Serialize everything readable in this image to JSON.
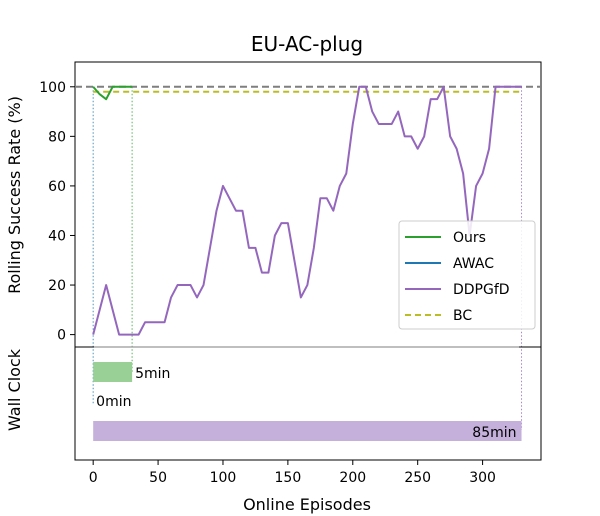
{
  "chart_data": {
    "type": "line",
    "title": "EU-AC-plug",
    "xlabel": "Online Episodes",
    "ylabel": "Rolling Success Rate (%)",
    "ylabel_bottom": "Wall Clock",
    "xlim": [
      -14,
      345
    ],
    "ylim": [
      -5,
      110
    ],
    "xticks": [
      0,
      50,
      100,
      150,
      200,
      250,
      300
    ],
    "yticks": [
      0,
      20,
      40,
      60,
      80,
      100
    ],
    "grid": false,
    "legend_position": "center-right",
    "reference_line": {
      "y": 100,
      "color": "#7f7f7f",
      "style": "dashed"
    },
    "series": [
      {
        "name": "Ours",
        "color": "#2ca02c",
        "style": "solid",
        "x": [
          0,
          5,
          10,
          15,
          20,
          25,
          30
        ],
        "y": [
          100,
          97,
          95,
          100,
          100,
          100,
          100
        ],
        "end_episode": 30
      },
      {
        "name": "AWAC",
        "color": "#1f77b4",
        "style": "solid",
        "x": [],
        "y": []
      },
      {
        "name": "DDPGfD",
        "color": "#9467bd",
        "style": "solid",
        "x": [
          0,
          5,
          10,
          15,
          20,
          25,
          30,
          35,
          40,
          45,
          50,
          55,
          60,
          65,
          70,
          75,
          80,
          85,
          90,
          95,
          100,
          105,
          110,
          115,
          120,
          125,
          130,
          135,
          140,
          145,
          150,
          155,
          160,
          165,
          170,
          175,
          180,
          185,
          190,
          195,
          200,
          205,
          210,
          215,
          220,
          225,
          230,
          235,
          240,
          245,
          250,
          255,
          260,
          265,
          270,
          275,
          280,
          285,
          290,
          295,
          300,
          305,
          310,
          315,
          320,
          325,
          330
        ],
        "y": [
          0,
          10,
          20,
          10,
          0,
          0,
          0,
          0,
          5,
          5,
          5,
          5,
          15,
          20,
          20,
          20,
          15,
          20,
          35,
          50,
          60,
          55,
          50,
          50,
          35,
          35,
          25,
          25,
          40,
          45,
          45,
          30,
          15,
          20,
          35,
          55,
          55,
          50,
          60,
          65,
          85,
          100,
          100,
          90,
          85,
          85,
          85,
          90,
          80,
          80,
          75,
          80,
          95,
          95,
          100,
          80,
          75,
          65,
          40,
          60,
          65,
          75,
          100,
          100,
          100,
          100,
          100
        ],
        "end_episode": 330
      },
      {
        "name": "BC",
        "color": "#bcbd22",
        "style": "dashed",
        "x": [
          0,
          330
        ],
        "y": [
          98,
          98
        ]
      }
    ],
    "wall_clock": [
      {
        "series": "Ours",
        "start_episode": 0,
        "end_episode": 30,
        "label": "5min",
        "color": "#98d095",
        "row": "top"
      },
      {
        "series": "AWAC",
        "start_episode": 0,
        "end_episode": 0,
        "label": "0min",
        "color": "#1f77b4",
        "row": "middle"
      },
      {
        "series": "DDPGfD",
        "start_episode": 0,
        "end_episode": 330,
        "label": "85min",
        "color": "#c5b0dc",
        "row": "bottom"
      }
    ]
  }
}
